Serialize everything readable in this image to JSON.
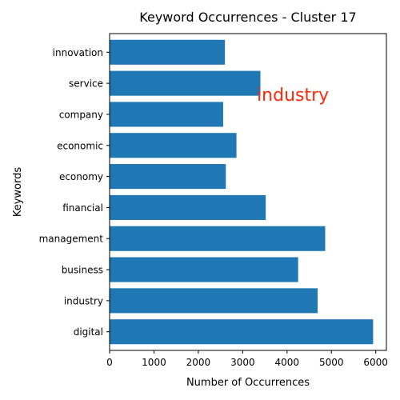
{
  "chart_data": {
    "type": "bar",
    "orientation": "horizontal",
    "title": "Keyword Occurrences - Cluster 17",
    "xlabel": "Number of Occurrences",
    "ylabel": "Keywords",
    "categories": [
      "digital",
      "industry",
      "business",
      "management",
      "financial",
      "economy",
      "economic",
      "company",
      "service",
      "innovation"
    ],
    "values": [
      5940,
      4690,
      4250,
      4860,
      3520,
      2620,
      2860,
      2560,
      3400,
      2600
    ],
    "xlim": [
      0,
      6240
    ],
    "xticks": [
      0,
      1000,
      2000,
      3000,
      4000,
      5000,
      6000
    ],
    "grid": false,
    "bar_color": "#1f77b4",
    "annotation": {
      "text": "industry",
      "color": "#ff2a0a",
      "at_category": "service",
      "at_value": 3500
    }
  }
}
